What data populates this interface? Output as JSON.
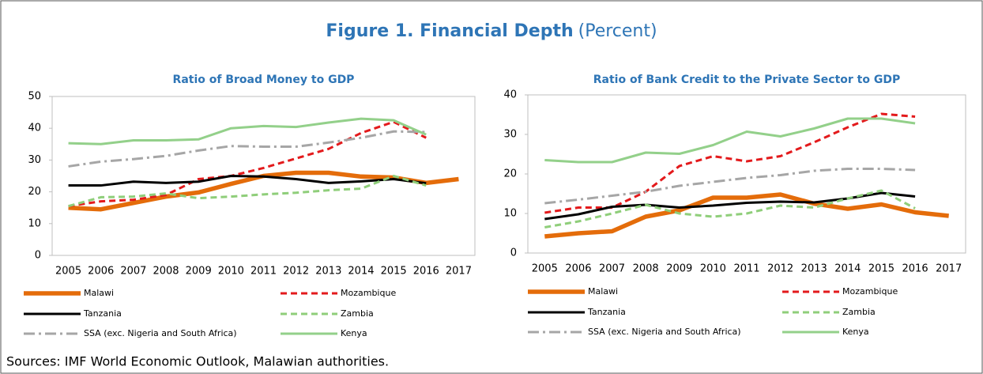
{
  "title": "Figure 1. Financial Depth",
  "title_unit": "(Percent)",
  "source": "Sources: IMF World Economic Outlook, Malawian authorities.",
  "chart_data": [
    {
      "type": "line",
      "title": "Ratio of Broad Money to GDP",
      "categories": [
        "2005",
        "2006",
        "2007",
        "2008",
        "2009",
        "2010",
        "2011",
        "2012",
        "2013",
        "2014",
        "2015",
        "2016",
        "2017"
      ],
      "ylim": [
        0,
        50
      ],
      "yticks": [
        0,
        10,
        20,
        30,
        40,
        50
      ],
      "grid": false,
      "series": [
        {
          "name": "Malawi",
          "color": "#e46c0a",
          "linestyle": "bold",
          "values": [
            15,
            14.5,
            16.5,
            18.5,
            19.8,
            22.5,
            25,
            26,
            26,
            24.8,
            24.5,
            22.8,
            24
          ]
        },
        {
          "name": "Mozambique",
          "color": "#e31a1c",
          "linestyle": "dashed",
          "values": [
            15.5,
            17,
            17.5,
            19,
            24,
            25,
            27.5,
            30.5,
            33.5,
            38.5,
            42,
            37,
            null
          ]
        },
        {
          "name": "Tanzania",
          "color": "#000000",
          "linestyle": "solid",
          "values": [
            22,
            22,
            23.2,
            22.8,
            23.2,
            25,
            24.8,
            24,
            22.8,
            23.3,
            24,
            22.7,
            null
          ]
        },
        {
          "name": "Zambia",
          "color": "#8fce7a",
          "linestyle": "dashed",
          "values": [
            15.5,
            18.3,
            18.5,
            19.5,
            18,
            18.5,
            19.2,
            19.7,
            20.5,
            21,
            25,
            22,
            null
          ]
        },
        {
          "name": "SSA (exc. Nigeria and South Africa)",
          "color": "#a6a6a6",
          "linestyle": "dashdot",
          "values": [
            28,
            29.5,
            30.3,
            31.3,
            33,
            34.4,
            34.2,
            34.2,
            35.5,
            37,
            39,
            38.8,
            null
          ]
        },
        {
          "name": "Kenya",
          "color": "#93d08a",
          "linestyle": "solid",
          "values": [
            35.3,
            35,
            36.2,
            36.2,
            36.5,
            40,
            40.7,
            40.4,
            41.8,
            43,
            42.5,
            38,
            null
          ]
        }
      ]
    },
    {
      "type": "line",
      "title": "Ratio of Bank Credit to the Private Sector to GDP",
      "categories": [
        "2005",
        "2006",
        "2007",
        "2008",
        "2009",
        "2010",
        "2011",
        "2012",
        "2013",
        "2014",
        "2015",
        "2016",
        "2017"
      ],
      "ylim": [
        0,
        40
      ],
      "yticks": [
        0,
        10,
        20,
        30,
        40
      ],
      "grid": false,
      "series": [
        {
          "name": "Malawi",
          "color": "#e46c0a",
          "linestyle": "bold",
          "values": [
            4.2,
            5,
            5.5,
            9.2,
            10.8,
            14,
            14,
            14.8,
            12.5,
            11.2,
            12.3,
            10.3,
            9.4
          ]
        },
        {
          "name": "Mozambique",
          "color": "#e31a1c",
          "linestyle": "dashed",
          "values": [
            10.2,
            11.5,
            11.5,
            15.5,
            22,
            24.5,
            23.2,
            24.5,
            28,
            31.8,
            35.2,
            34.5,
            null
          ]
        },
        {
          "name": "Tanzania",
          "color": "#000000",
          "linestyle": "solid",
          "values": [
            8.6,
            9.8,
            11.7,
            12.2,
            11.5,
            12,
            12.7,
            13,
            12.8,
            13.8,
            15.2,
            14.3,
            null
          ]
        },
        {
          "name": "Zambia",
          "color": "#8fce7a",
          "linestyle": "dashed",
          "values": [
            6.5,
            8,
            10,
            12.2,
            10,
            9.2,
            10,
            12,
            11.5,
            13.8,
            15.8,
            11.3,
            null
          ]
        },
        {
          "name": "SSA (exc. Nigeria and South Africa)",
          "color": "#a6a6a6",
          "linestyle": "dashdot",
          "values": [
            12.6,
            13.5,
            14.5,
            15.5,
            17,
            18,
            19,
            19.7,
            20.8,
            21.3,
            21.3,
            21,
            null
          ]
        },
        {
          "name": "Kenya",
          "color": "#93d08a",
          "linestyle": "solid",
          "values": [
            23.5,
            23,
            23,
            25.4,
            25.1,
            27.3,
            30.7,
            29.5,
            31.5,
            34,
            34,
            32.8,
            null
          ]
        }
      ]
    }
  ]
}
